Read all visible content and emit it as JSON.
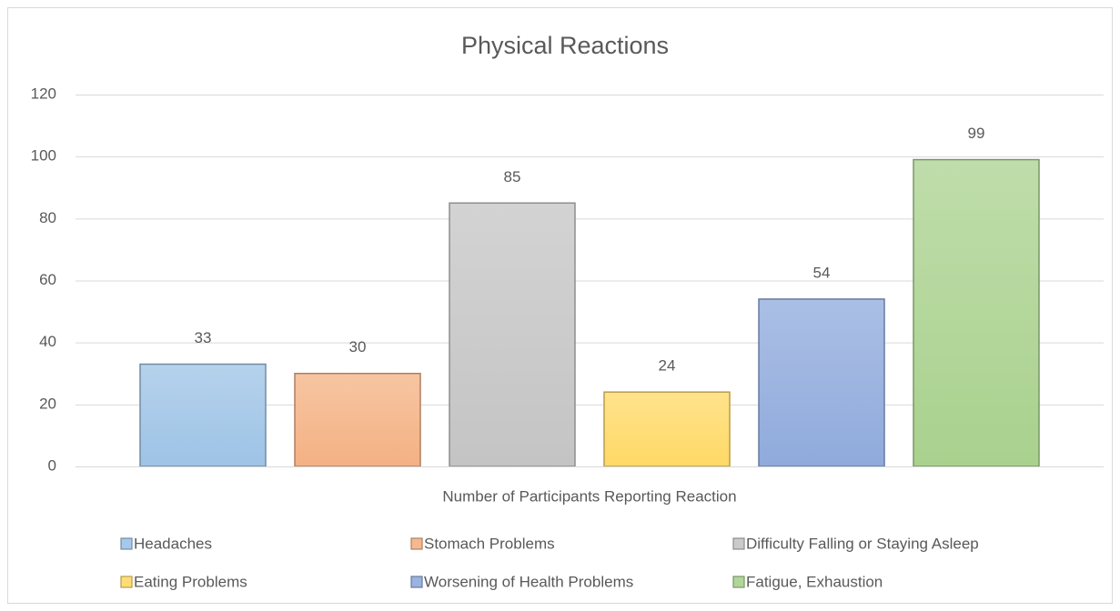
{
  "chart_data": {
    "type": "bar",
    "title": "Physical Reactions",
    "categories": [
      "Number of Participants Reporting Reaction"
    ],
    "series": [
      {
        "name": "Headaches",
        "color": "#9dc3e6",
        "values": [
          33
        ]
      },
      {
        "name": "Stomach Problems",
        "color": "#f4b183",
        "values": [
          30
        ]
      },
      {
        "name": "Difficulty Falling or Staying Asleep",
        "color": "#c4c4c4",
        "values": [
          85
        ]
      },
      {
        "name": "Eating Problems",
        "color": "#ffd966",
        "values": [
          24
        ]
      },
      {
        "name": "Worsening of Health Problems",
        "color": "#8faadc",
        "values": [
          54
        ]
      },
      {
        "name": "Fatigue, Exhaustion",
        "color": "#a9d18e",
        "values": [
          99
        ]
      }
    ],
    "ylim": [
      0,
      120
    ],
    "yticks": [
      0,
      20,
      40,
      60,
      80,
      100,
      120
    ],
    "grid": true,
    "legend": "bottom"
  }
}
